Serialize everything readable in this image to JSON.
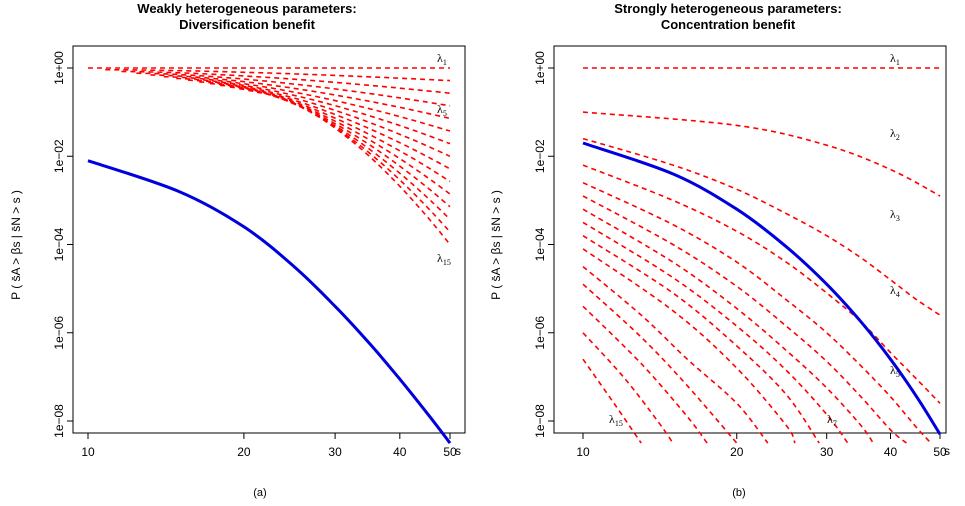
{
  "chart_data": [
    {
      "type": "line",
      "title_line1": "Weakly heterogeneous parameters:",
      "title_line2": "Diversification benefit",
      "ylabel": "P ( s̄A > βs | s̄N > s )",
      "xlabel": "s",
      "caption": "(a)",
      "x_scale": "log",
      "y_scale": "log",
      "xlim": [
        10,
        50
      ],
      "ylim_log10": [
        -8.5,
        0.2
      ],
      "x_ticks": [
        10,
        20,
        30,
        40,
        50
      ],
      "x_tick_labels": [
        "10",
        "20",
        "30",
        "40",
        "50"
      ],
      "y_ticks_log10": [
        0,
        -2,
        -4,
        -6,
        -8
      ],
      "y_tick_labels": [
        "1e+00",
        "1e−02",
        "1e−04",
        "1e−06",
        "1e−08"
      ],
      "s_values": [
        10,
        15,
        20,
        25,
        30,
        35,
        40,
        45,
        50
      ],
      "dashed_series": {
        "color": "#ff0000",
        "count": 15,
        "start_x_first": 10,
        "start_x_step": 0.8,
        "end_log10_first": 0.0,
        "end_log10_last": -4.0,
        "labels": [
          {
            "base": "λ",
            "sub": "1"
          },
          {
            "base": "λ",
            "sub": "5"
          },
          {
            "base": "λ",
            "sub": "15"
          }
        ]
      },
      "solid_series": {
        "color": "#0000dd",
        "log10_values": [
          -2.1,
          -2.8,
          -3.6,
          -4.5,
          -5.4,
          -6.25,
          -7.05,
          -7.8,
          -8.5
        ]
      }
    },
    {
      "type": "line",
      "title_line1": "Strongly heterogeneous parameters:",
      "title_line2": "Concentration benefit",
      "ylabel": "P ( s̄A > βs | s̄N > s )",
      "xlabel": "s",
      "caption": "(b)",
      "x_scale": "log",
      "y_scale": "log",
      "xlim": [
        10,
        50
      ],
      "ylim_log10": [
        -8.5,
        0.2
      ],
      "x_ticks": [
        10,
        20,
        30,
        40,
        50
      ],
      "x_tick_labels": [
        "10",
        "20",
        "30",
        "40",
        "50"
      ],
      "y_ticks_log10": [
        0,
        -2,
        -4,
        -6,
        -8
      ],
      "y_tick_labels": [
        "1e+00",
        "1e−02",
        "1e−04",
        "1e−06",
        "1e−08"
      ],
      "dashed_series": {
        "color": "#ff0000",
        "curves": [
          {
            "x": [
              10,
              20,
              30,
              40,
              50
            ],
            "log10": [
              0,
              0,
              0,
              0,
              0
            ]
          },
          {
            "x": [
              10,
              20,
              30,
              40,
              50
            ],
            "log10": [
              -1.0,
              -1.3,
              -1.75,
              -2.3,
              -2.9
            ]
          },
          {
            "x": [
              10,
              15,
              20,
              25,
              30,
              35,
              40,
              45,
              50
            ],
            "log10": [
              -1.6,
              -2.2,
              -2.75,
              -3.3,
              -3.8,
              -4.3,
              -4.8,
              -5.25,
              -5.6
            ]
          },
          {
            "x": [
              10,
              15,
              20,
              25,
              30,
              35,
              40,
              45,
              50
            ],
            "log10": [
              -2.2,
              -3.0,
              -3.7,
              -4.4,
              -5.1,
              -5.75,
              -6.45,
              -7.05,
              -7.6
            ]
          },
          {
            "x": [
              10,
              15,
              20,
              25,
              30,
              35,
              40,
              45,
              48
            ],
            "log10": [
              -2.6,
              -3.55,
              -4.4,
              -5.25,
              -6.0,
              -6.75,
              -7.45,
              -8.15,
              -8.5
            ]
          },
          {
            "x": [
              10,
              15,
              20,
              25,
              30,
              35,
              40,
              43
            ],
            "log10": [
              -2.9,
              -4.0,
              -4.95,
              -5.85,
              -6.65,
              -7.45,
              -8.2,
              -8.5
            ]
          },
          {
            "x": [
              10,
              15,
              20,
              25,
              30,
              35,
              37
            ],
            "log10": [
              -3.2,
              -4.4,
              -5.45,
              -6.4,
              -7.25,
              -8.1,
              -8.5
            ]
          },
          {
            "x": [
              10,
              15,
              20,
              25,
              30,
              33
            ],
            "log10": [
              -3.5,
              -4.75,
              -5.85,
              -6.85,
              -7.85,
              -8.5
            ]
          },
          {
            "x": [
              10,
              15,
              20,
              25,
              29
            ],
            "log10": [
              -3.8,
              -5.1,
              -6.3,
              -7.4,
              -8.5
            ]
          },
          {
            "x": [
              10,
              15,
              20,
              25,
              26
            ],
            "log10": [
              -4.1,
              -5.5,
              -6.8,
              -8.1,
              -8.5
            ]
          },
          {
            "x": [
              10,
              13,
              16,
              20,
              23
            ],
            "log10": [
              -4.5,
              -5.6,
              -6.6,
              -7.6,
              -8.5
            ]
          },
          {
            "x": [
              10,
              13,
              16,
              20
            ],
            "log10": [
              -4.9,
              -6.1,
              -7.2,
              -8.5
            ]
          },
          {
            "x": [
              10,
              13,
              16,
              17.5
            ],
            "log10": [
              -5.4,
              -6.7,
              -7.9,
              -8.5
            ]
          },
          {
            "x": [
              10,
              12,
              14,
              15
            ],
            "log10": [
              -6.0,
              -7.0,
              -8.0,
              -8.5
            ]
          },
          {
            "x": [
              10,
              11.5,
              13
            ],
            "log10": [
              -6.6,
              -7.6,
              -8.5
            ]
          }
        ],
        "labels": [
          {
            "base": "λ",
            "sub": "1"
          },
          {
            "base": "λ",
            "sub": "2"
          },
          {
            "base": "λ",
            "sub": "3"
          },
          {
            "base": "λ",
            "sub": "4"
          },
          {
            "base": "λ",
            "sub": "5"
          },
          {
            "base": "λ",
            "sub": "7"
          },
          {
            "base": "λ",
            "sub": "15"
          }
        ]
      },
      "solid_series": {
        "color": "#0000dd",
        "x": [
          10,
          15,
          20,
          25,
          30,
          35,
          40,
          45,
          50
        ],
        "log10_values": [
          -1.7,
          -2.4,
          -3.2,
          -4.05,
          -4.9,
          -5.75,
          -6.6,
          -7.45,
          -8.3
        ]
      }
    }
  ]
}
